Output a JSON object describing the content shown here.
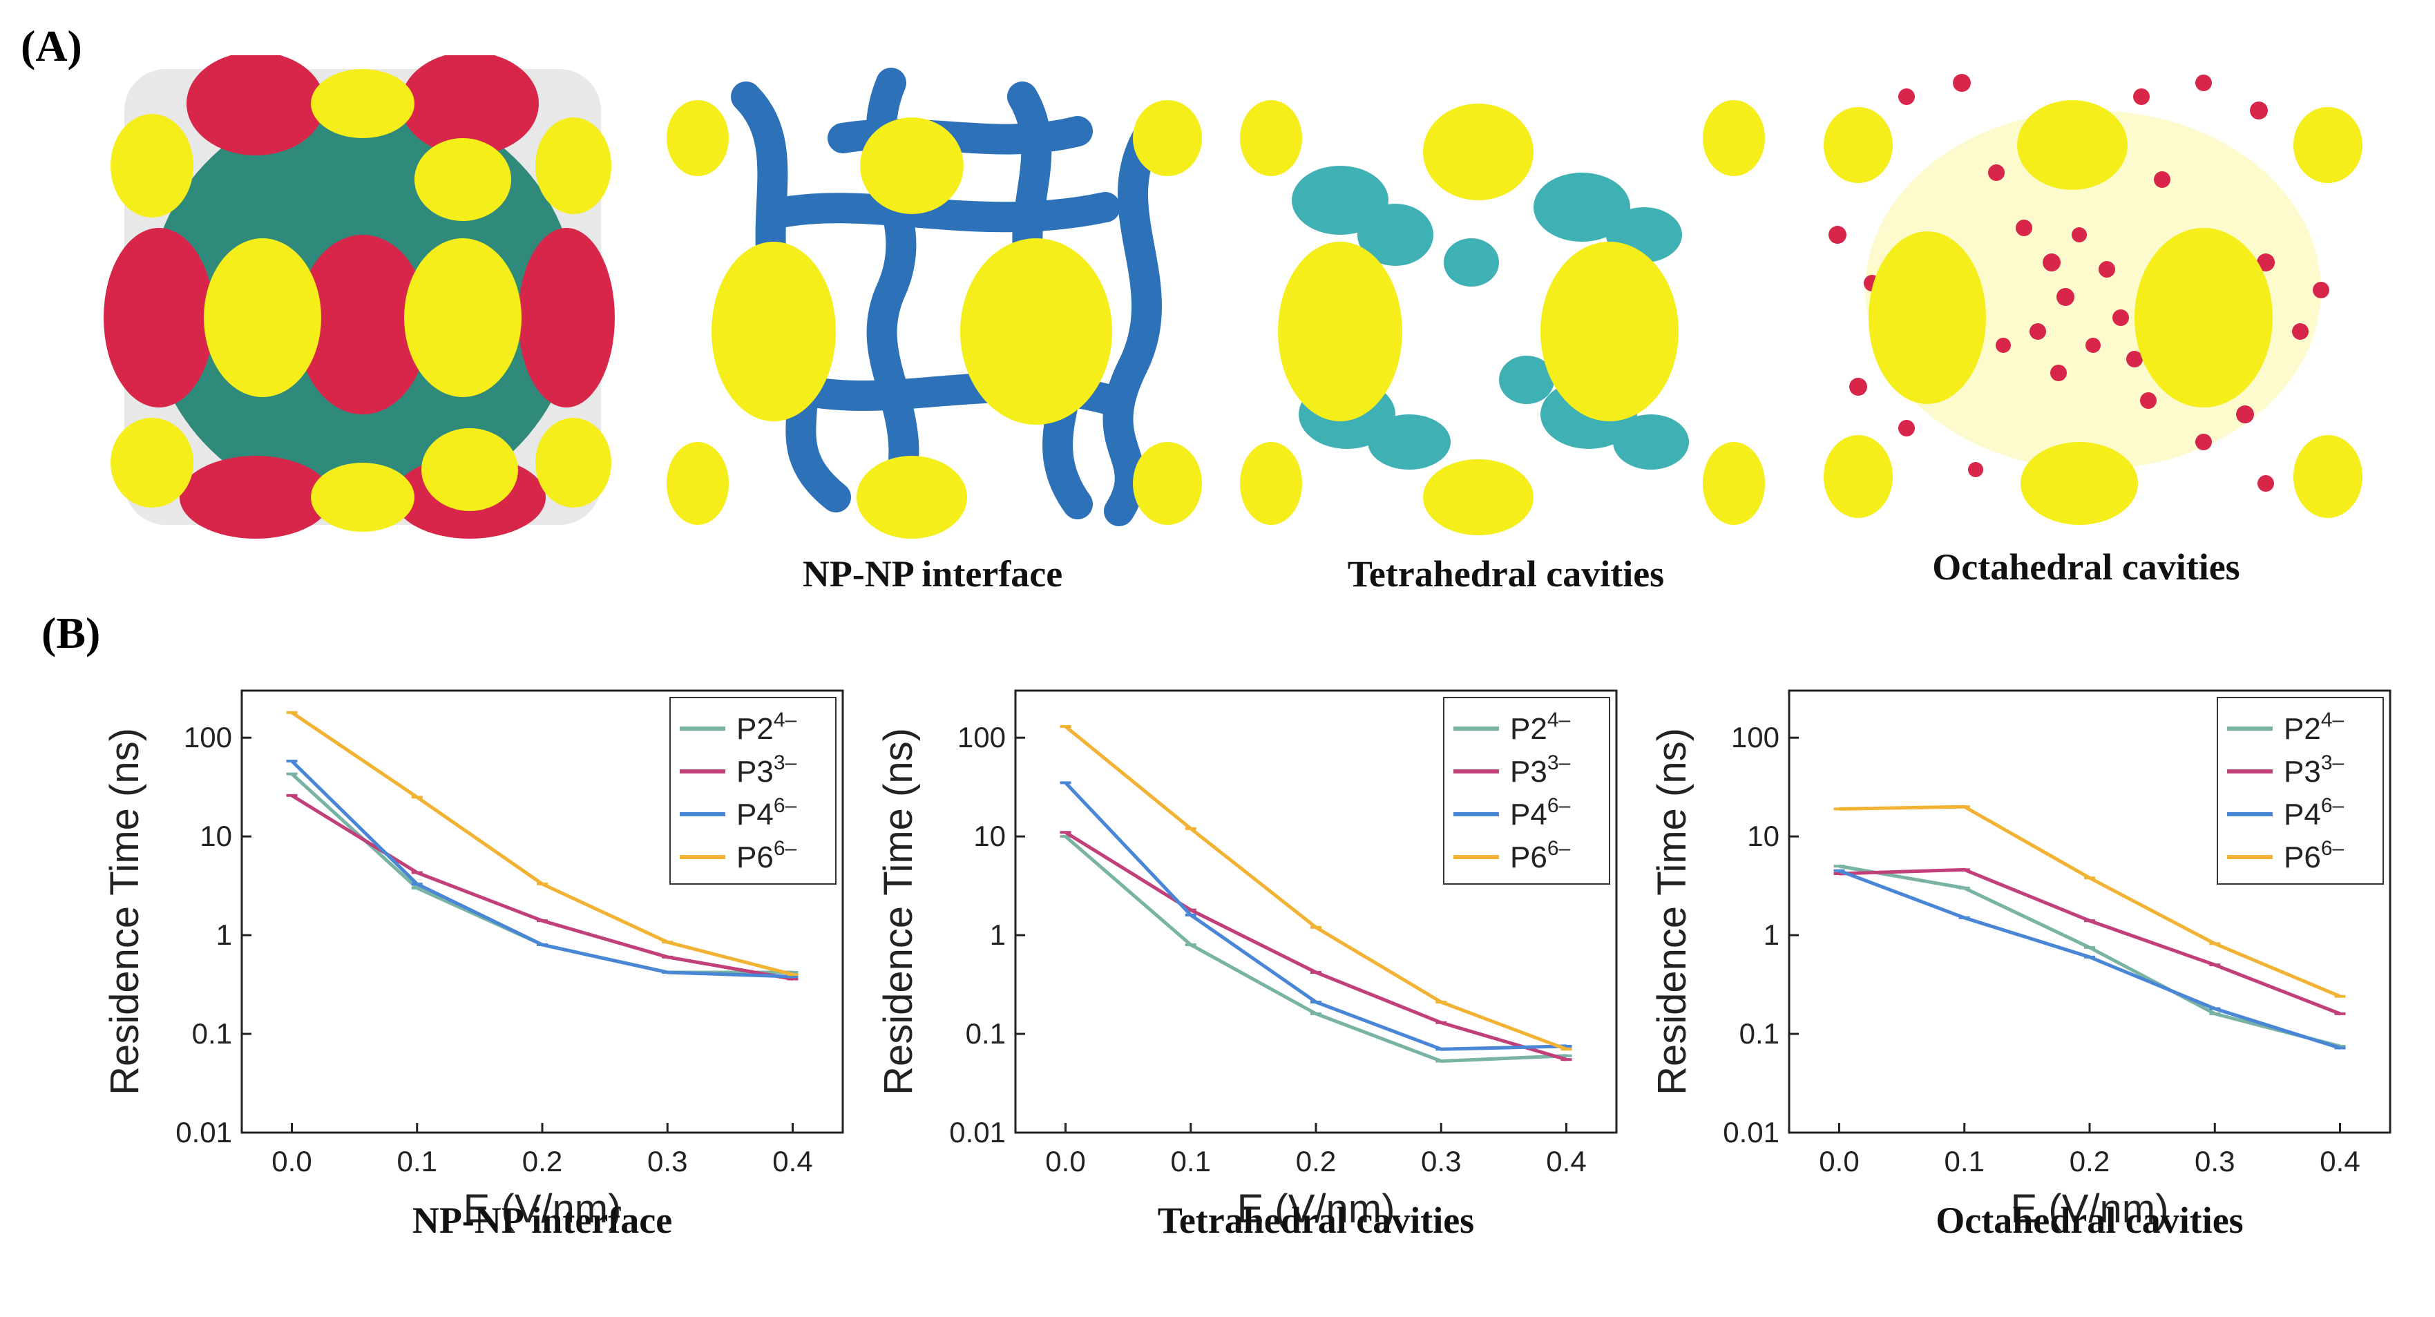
{
  "panels": {
    "a_label": "(A)",
    "b_label": "(B)",
    "snapshot_captions": [
      "NP-NP interface",
      "Tetrahedral cavities",
      "Octahedral cavities"
    ]
  },
  "colors": {
    "P2": "#78b3a4",
    "P3": "#c2407a",
    "P4": "#4a86d6",
    "P6": "#f2b233",
    "np_yellow": "#f5ee1a",
    "interface_blue": "#2d72b8",
    "tetra_cyan": "#3fb0b4",
    "octa_red": "#d7264a",
    "shell_teal": "#2f8a7c"
  },
  "chart_data": [
    {
      "type": "line",
      "caption": "NP-NP interface",
      "xlabel": "E (V/nm)",
      "ylabel": "Residence Time (ns)",
      "yscale": "log",
      "ylim": [
        0.01,
        300
      ],
      "xlim": [
        -0.04,
        0.44
      ],
      "x": [
        0.0,
        0.1,
        0.2,
        0.3,
        0.4
      ],
      "xticks": [
        "0.0",
        "0.1",
        "0.2",
        "0.3",
        "0.4"
      ],
      "yticks": [
        "0.01",
        "0.1",
        "1",
        "10",
        "100"
      ],
      "legend_position": "top-right",
      "series": [
        {
          "name": "P2",
          "sup": "4–",
          "values": [
            43,
            3.0,
            0.8,
            0.42,
            0.42
          ]
        },
        {
          "name": "P3",
          "sup": "3–",
          "values": [
            26,
            4.3,
            1.4,
            0.6,
            0.36
          ]
        },
        {
          "name": "P4",
          "sup": "6–",
          "values": [
            58,
            3.3,
            0.8,
            0.42,
            0.38
          ]
        },
        {
          "name": "P6",
          "sup": "6–",
          "values": [
            180,
            25,
            3.3,
            0.85,
            0.4
          ]
        }
      ]
    },
    {
      "type": "line",
      "caption": "Tetrahedral cavities",
      "xlabel": "E (V/nm)",
      "ylabel": "Residence Time (ns)",
      "yscale": "log",
      "ylim": [
        0.01,
        300
      ],
      "xlim": [
        -0.04,
        0.44
      ],
      "x": [
        0.0,
        0.1,
        0.2,
        0.3,
        0.4
      ],
      "xticks": [
        "0.0",
        "0.1",
        "0.2",
        "0.3",
        "0.4"
      ],
      "yticks": [
        "0.01",
        "0.1",
        "1",
        "10",
        "100"
      ],
      "legend_position": "top-right",
      "series": [
        {
          "name": "P2",
          "sup": "4–",
          "values": [
            10,
            0.8,
            0.16,
            0.053,
            0.06
          ]
        },
        {
          "name": "P3",
          "sup": "3–",
          "values": [
            11,
            1.8,
            0.42,
            0.13,
            0.055
          ]
        },
        {
          "name": "P4",
          "sup": "6–",
          "values": [
            35,
            1.6,
            0.21,
            0.07,
            0.075
          ]
        },
        {
          "name": "P6",
          "sup": "6–",
          "values": [
            130,
            12,
            1.2,
            0.21,
            0.07
          ]
        }
      ]
    },
    {
      "type": "line",
      "caption": "Octahedral cavities",
      "xlabel": "E (V/nm)",
      "ylabel": "Residence Time (ns)",
      "yscale": "log",
      "ylim": [
        0.01,
        300
      ],
      "xlim": [
        -0.04,
        0.44
      ],
      "x": [
        0.0,
        0.1,
        0.2,
        0.3,
        0.4
      ],
      "xticks": [
        "0.0",
        "0.1",
        "0.2",
        "0.3",
        "0.4"
      ],
      "yticks": [
        "0.01",
        "0.1",
        "1",
        "10",
        "100"
      ],
      "legend_position": "top-right",
      "series": [
        {
          "name": "P2",
          "sup": "4–",
          "values": [
            5.0,
            3.0,
            0.75,
            0.16,
            0.075
          ]
        },
        {
          "name": "P3",
          "sup": "3–",
          "values": [
            4.2,
            4.6,
            1.4,
            0.5,
            0.16
          ]
        },
        {
          "name": "P4",
          "sup": "6–",
          "values": [
            4.5,
            1.5,
            0.6,
            0.18,
            0.072
          ]
        },
        {
          "name": "P6",
          "sup": "6–",
          "values": [
            19,
            20,
            3.8,
            0.82,
            0.24
          ]
        }
      ]
    }
  ]
}
